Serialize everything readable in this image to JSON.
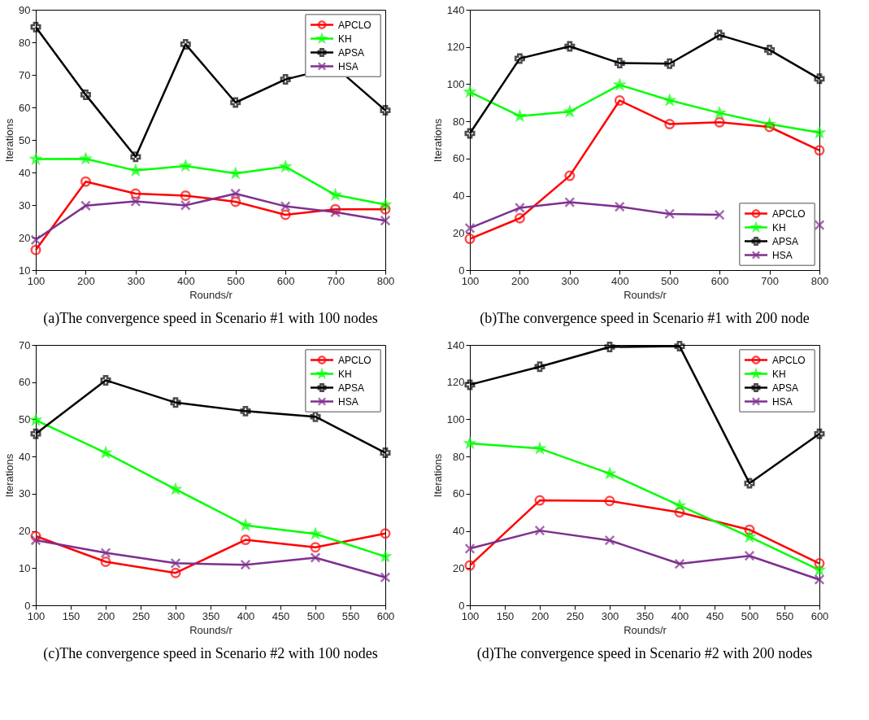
{
  "chart_data": [
    {
      "type": "line",
      "title": "(a)The convergence speed in Scenario #1 with 100 nodes",
      "xlabel": "Rounds/r",
      "ylabel": "Iterations",
      "x": [
        100,
        200,
        300,
        400,
        500,
        600,
        700,
        800
      ],
      "xlim": [
        100,
        800
      ],
      "xticks": [
        100,
        200,
        300,
        400,
        500,
        600,
        700,
        800
      ],
      "ylim": [
        10,
        90
      ],
      "yticks": [
        10,
        20,
        30,
        40,
        50,
        60,
        70,
        80,
        90
      ],
      "grid": false,
      "legend": "top right",
      "line_style": "solid",
      "series": [
        {
          "name": "APCLO",
          "color": "#ff0000",
          "marker": "circle",
          "values": [
            16.2,
            37.2,
            33.5,
            32.9,
            31.0,
            27.0,
            28.7,
            28.7
          ]
        },
        {
          "name": "KH",
          "color": "#00ff00",
          "marker": "star",
          "values": [
            44.1,
            44.2,
            40.6,
            42.0,
            39.7,
            41.8,
            33.1,
            30.1
          ]
        },
        {
          "name": "APSA",
          "color": "#000000",
          "marker": "cross",
          "values": [
            84.7,
            63.9,
            44.8,
            79.4,
            61.5,
            68.6,
            72.4,
            59.1
          ]
        },
        {
          "name": "HSA",
          "color": "#7e2f8e",
          "marker": "x",
          "values": [
            19.3,
            29.8,
            31.1,
            29.9,
            33.5,
            29.6,
            27.8,
            25.2
          ]
        }
      ]
    },
    {
      "type": "line",
      "title": "(b)The convergence speed in Scenario #1 with 200 node",
      "xlabel": "Rounds/r",
      "ylabel": "Iterations",
      "x": [
        100,
        200,
        300,
        400,
        500,
        600,
        700,
        800
      ],
      "xlim": [
        100,
        800
      ],
      "xticks": [
        100,
        200,
        300,
        400,
        500,
        600,
        700,
        800
      ],
      "ylim": [
        0,
        140
      ],
      "yticks": [
        0,
        20,
        40,
        60,
        80,
        100,
        120,
        140
      ],
      "grid": false,
      "legend": "bottom right",
      "line_style": "solid",
      "series": [
        {
          "name": "APCLO",
          "color": "#ff0000",
          "marker": "circle",
          "values": [
            16.8,
            27.9,
            50.7,
            91.2,
            78.5,
            79.5,
            77.0,
            64.4
          ]
        },
        {
          "name": "KH",
          "color": "#00ff00",
          "marker": "star",
          "values": [
            95.8,
            82.8,
            85.2,
            99.6,
            91.3,
            84.5,
            78.5,
            73.9
          ]
        },
        {
          "name": "APSA",
          "color": "#000000",
          "marker": "cross",
          "values": [
            73.5,
            113.8,
            120.3,
            111.3,
            111.0,
            126.4,
            118.4,
            102.9
          ]
        },
        {
          "name": "HSA",
          "color": "#7e2f8e",
          "marker": "x",
          "values": [
            22.6,
            33.5,
            36.5,
            34.1,
            30.2,
            29.7,
            null,
            24.2
          ]
        }
      ]
    },
    {
      "type": "line",
      "title": "(c)The convergence speed   in Scenario #2 with 100 nodes",
      "xlabel": "Rounds/r",
      "ylabel": "Iterations",
      "x": [
        100,
        200,
        300,
        400,
        500,
        600
      ],
      "xlim": [
        100,
        600
      ],
      "xticks": [
        100,
        150,
        200,
        250,
        300,
        350,
        400,
        450,
        500,
        550,
        600
      ],
      "ylim": [
        0,
        70
      ],
      "yticks": [
        0,
        10,
        20,
        30,
        40,
        50,
        60,
        70
      ],
      "grid": false,
      "legend": "top right",
      "line_style": "solid",
      "series": [
        {
          "name": "APCLO",
          "color": "#ff0000",
          "marker": "circle",
          "values": [
            18.6,
            11.7,
            8.7,
            17.6,
            15.6,
            19.3
          ]
        },
        {
          "name": "KH",
          "color": "#00ff00",
          "marker": "star",
          "values": [
            49.8,
            41.0,
            31.2,
            21.5,
            19.2,
            13.1
          ]
        },
        {
          "name": "APSA",
          "color": "#000000",
          "marker": "cross",
          "values": [
            46.1,
            60.5,
            54.5,
            52.2,
            50.7,
            41.0
          ]
        },
        {
          "name": "HSA",
          "color": "#7e2f8e",
          "marker": "x",
          "values": [
            17.5,
            14.1,
            11.3,
            10.9,
            12.8,
            7.5
          ]
        }
      ]
    },
    {
      "type": "line",
      "title": "(d)The convergence speed in Scenario #2 with 200 nodes",
      "xlabel": "Rounds/r",
      "ylabel": "Iterations",
      "x": [
        100,
        200,
        300,
        400,
        500,
        600
      ],
      "xlim": [
        100,
        600
      ],
      "xticks": [
        100,
        150,
        200,
        250,
        300,
        350,
        400,
        450,
        500,
        550,
        600
      ],
      "ylim": [
        0,
        140
      ],
      "yticks": [
        0,
        20,
        40,
        60,
        80,
        100,
        120,
        140
      ],
      "grid": false,
      "legend": "top right",
      "line_style": "solid",
      "series": [
        {
          "name": "APCLO",
          "color": "#ff0000",
          "marker": "circle",
          "values": [
            21.4,
            56.4,
            56.1,
            50.0,
            40.6,
            22.5
          ]
        },
        {
          "name": "KH",
          "color": "#00ff00",
          "marker": "star",
          "values": [
            87.1,
            84.3,
            70.8,
            53.6,
            36.8,
            19.0
          ]
        },
        {
          "name": "APSA",
          "color": "#000000",
          "marker": "cross",
          "values": [
            118.6,
            128.3,
            138.9,
            139.3,
            65.6,
            92.2
          ]
        },
        {
          "name": "HSA",
          "color": "#7e2f8e",
          "marker": "x",
          "values": [
            30.5,
            40.2,
            34.9,
            22.3,
            26.6,
            13.8
          ]
        }
      ]
    }
  ]
}
